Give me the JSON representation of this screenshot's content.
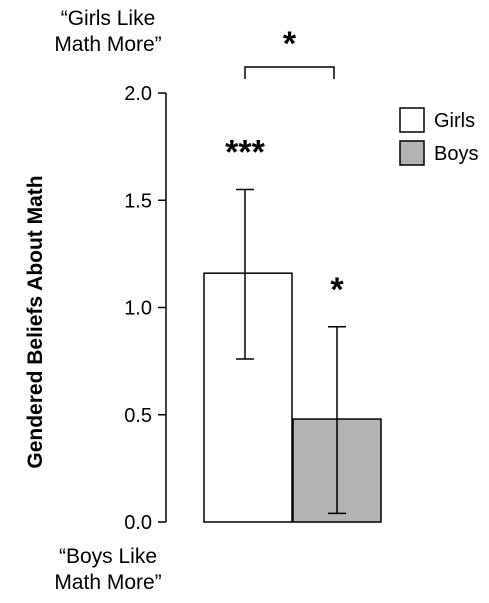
{
  "chart_data": {
    "type": "bar",
    "ylabel": "Gendered Beliefs About Math",
    "ylim": [
      0,
      2.0
    ],
    "yticks": [
      "0.0",
      "0.5",
      "1.0",
      "1.5",
      "2.0"
    ],
    "ytick_values": [
      0,
      0.5,
      1.0,
      1.5,
      2.0
    ],
    "y_top_anchor": "“Girls Like\nMath More”",
    "y_bottom_anchor": "“Boys Like\nMath More”",
    "series": [
      {
        "name": "Girls",
        "value": 1.16,
        "error_low": 0.76,
        "error_high": 1.55,
        "color": "#ffffff",
        "significance": "***"
      },
      {
        "name": "Boys",
        "value": 0.48,
        "error_low": 0.04,
        "error_high": 0.91,
        "color": "#b3b3b3",
        "significance": "*"
      }
    ],
    "comparison_significance": "*",
    "legend": {
      "placement": "top-right",
      "entries": [
        "Girls",
        "Boys"
      ]
    },
    "grid": false
  }
}
